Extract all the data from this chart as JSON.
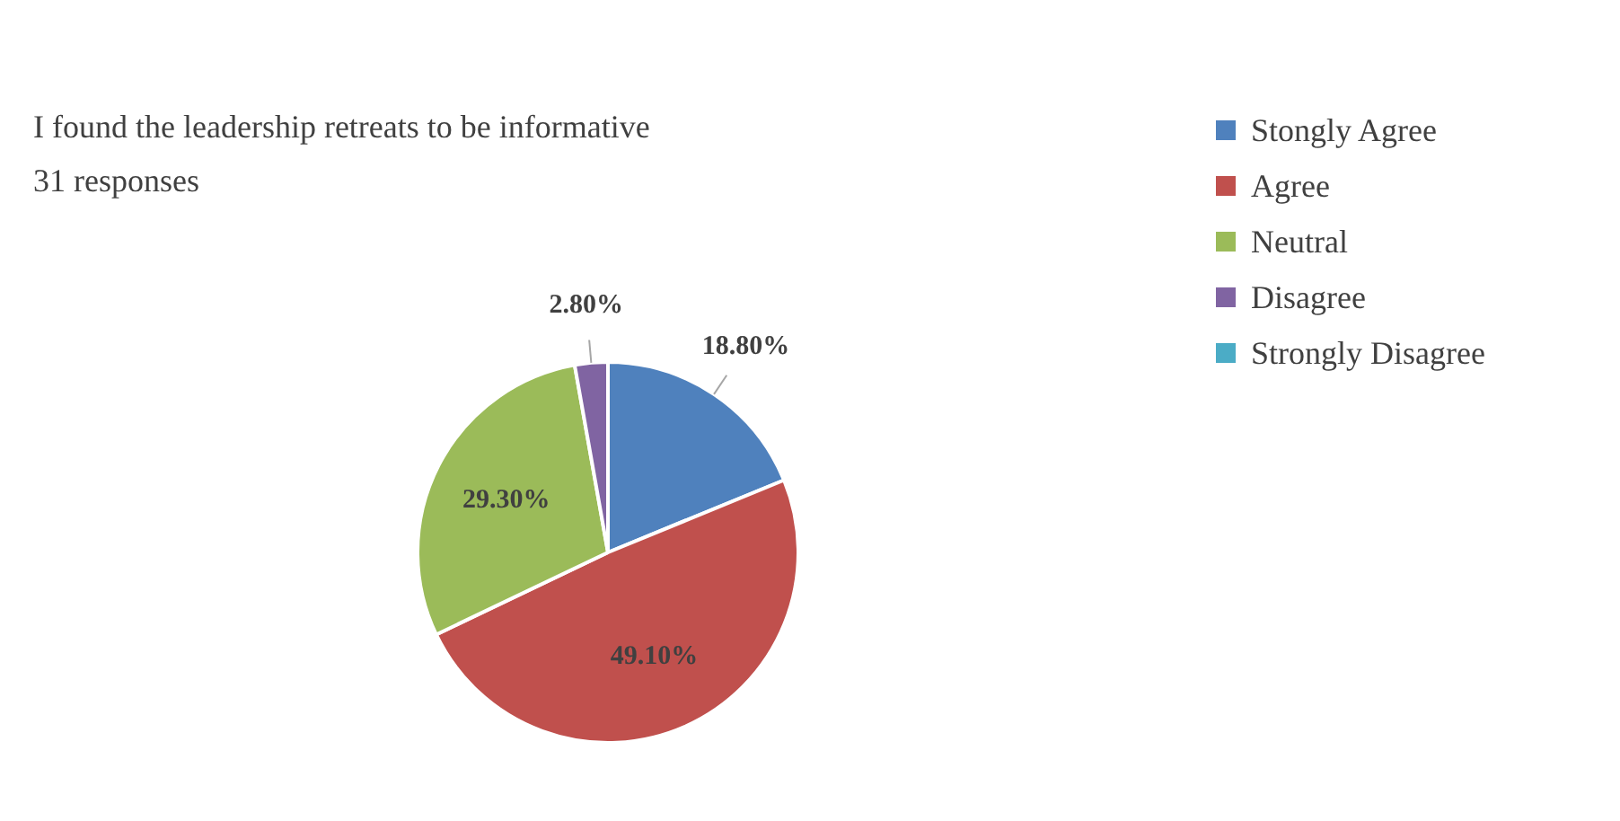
{
  "chart_data": {
    "type": "pie",
    "title": "I found  the leadership retreats to be informative",
    "subtitle": "31 responses",
    "categories": [
      "Stongly Agree",
      "Agree",
      "Neutral",
      "Disagree",
      "Strongly Disagree"
    ],
    "values": [
      18.8,
      49.1,
      29.3,
      2.8,
      0
    ],
    "value_labels": [
      "18.80%",
      "49.10%",
      "29.30%",
      "2.80%",
      null
    ],
    "colors": [
      "#4f81bd",
      "#c0504d",
      "#9bbb59",
      "#8064a2",
      "#4bacc6"
    ],
    "legend": "right"
  }
}
